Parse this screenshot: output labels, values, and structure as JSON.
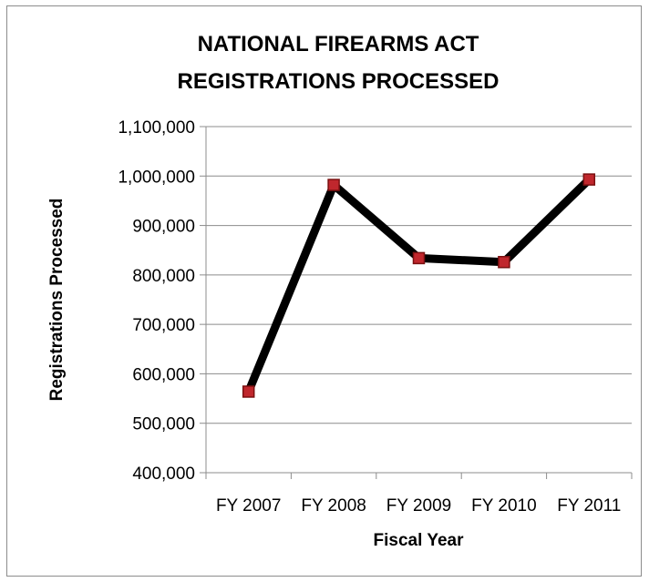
{
  "chart_data": {
    "type": "line",
    "title": [
      "NATIONAL FIREARMS ACT",
      "REGISTRATIONS PROCESSED"
    ],
    "xlabel": "Fiscal Year",
    "ylabel": "Registrations Processed",
    "categories": [
      "FY 2007",
      "FY 2008",
      "FY 2009",
      "FY 2010",
      "FY 2011"
    ],
    "series": [
      {
        "values": [
          564000,
          982000,
          834000,
          826000,
          993000
        ],
        "line_color": "#000000",
        "marker_fill": "#c0272d",
        "marker_stroke": "#7a1010"
      }
    ],
    "ylim": [
      400000,
      1100000
    ],
    "ytick_values": [
      400000,
      500000,
      600000,
      700000,
      800000,
      900000,
      1000000,
      1100000
    ],
    "ytick_labels": [
      "400,000",
      "500,000",
      "600,000",
      "700,000",
      "800,000",
      "900,000",
      "1,000,000",
      "1,100,000"
    ],
    "grid": true,
    "legend": "none",
    "gridline_color": "#8c8c8c"
  }
}
